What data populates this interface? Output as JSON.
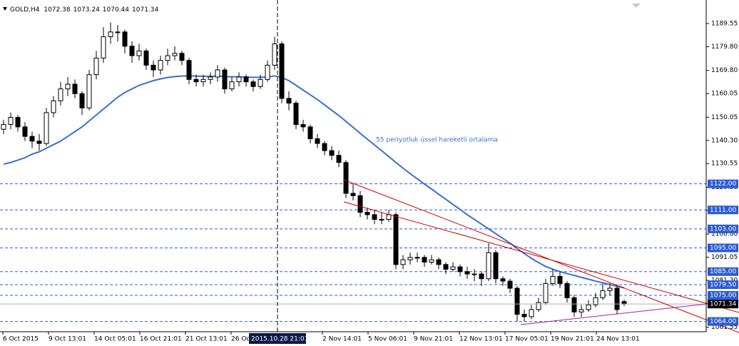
{
  "chart_data": {
    "type": "candlestick",
    "symbol": "GOLD,H4",
    "annotation": "55 periyotluk üssel hareketli ortalama",
    "up_color": "#ffffff",
    "down_color": "#000000",
    "candles": [
      [
        1145,
        1149,
        1143,
        1147
      ],
      [
        1147,
        1152,
        1145,
        1150
      ],
      [
        1150,
        1151,
        1144,
        1146
      ],
      [
        1146,
        1148,
        1140,
        1142
      ],
      [
        1142,
        1144,
        1137,
        1140
      ],
      [
        1140,
        1143,
        1136,
        1139
      ],
      [
        1139,
        1154,
        1138,
        1152
      ],
      [
        1152,
        1159,
        1150,
        1157
      ],
      [
        1157,
        1165,
        1155,
        1162
      ],
      [
        1162,
        1167,
        1159,
        1164
      ],
      [
        1164,
        1166,
        1158,
        1160
      ],
      [
        1160,
        1161,
        1151,
        1154
      ],
      [
        1154,
        1170,
        1153,
        1168
      ],
      [
        1168,
        1178,
        1166,
        1175
      ],
      [
        1175,
        1188,
        1173,
        1184
      ],
      [
        1184,
        1190,
        1181,
        1186
      ],
      [
        1186,
        1189,
        1182,
        1186
      ],
      [
        1186,
        1187,
        1177,
        1180
      ],
      [
        1180,
        1182,
        1173,
        1176
      ],
      [
        1176,
        1181,
        1174,
        1178
      ],
      [
        1178,
        1179,
        1170,
        1172
      ],
      [
        1172,
        1174,
        1167,
        1170
      ],
      [
        1170,
        1176,
        1168,
        1174
      ],
      [
        1174,
        1179,
        1172,
        1176
      ],
      [
        1176,
        1180,
        1174,
        1177
      ],
      [
        1177,
        1178,
        1172,
        1174
      ],
      [
        1174,
        1175,
        1164,
        1166
      ],
      [
        1166,
        1168,
        1163,
        1165
      ],
      [
        1165,
        1168,
        1163,
        1166
      ],
      [
        1166,
        1169,
        1164,
        1167
      ],
      [
        1167,
        1172,
        1165,
        1170
      ],
      [
        1170,
        1171,
        1160,
        1162
      ],
      [
        1162,
        1167,
        1161,
        1165
      ],
      [
        1165,
        1169,
        1163,
        1167
      ],
      [
        1167,
        1168,
        1163,
        1165
      ],
      [
        1165,
        1166,
        1161,
        1163
      ],
      [
        1163,
        1168,
        1162,
        1166
      ],
      [
        1166,
        1174,
        1165,
        1172
      ],
      [
        1172,
        1184,
        1170,
        1181
      ],
      [
        1181,
        1182,
        1156,
        1158
      ],
      [
        1158,
        1161,
        1153,
        1156
      ],
      [
        1156,
        1157,
        1145,
        1147
      ],
      [
        1147,
        1149,
        1144,
        1146
      ],
      [
        1146,
        1147,
        1139,
        1141
      ],
      [
        1141,
        1143,
        1137,
        1139
      ],
      [
        1139,
        1140,
        1134,
        1136
      ],
      [
        1136,
        1138,
        1132,
        1134
      ],
      [
        1134,
        1136,
        1129,
        1131
      ],
      [
        1131,
        1132,
        1116,
        1118
      ],
      [
        1118,
        1122,
        1115,
        1117
      ],
      [
        1117,
        1119,
        1108,
        1110
      ],
      [
        1110,
        1112,
        1107,
        1109
      ],
      [
        1109,
        1111,
        1105,
        1107
      ],
      [
        1107,
        1110,
        1105,
        1107
      ],
      [
        1107,
        1111,
        1106,
        1109
      ],
      [
        1109,
        1110,
        1086,
        1088
      ],
      [
        1088,
        1092,
        1086,
        1090
      ],
      [
        1090,
        1093,
        1088,
        1091
      ],
      [
        1091,
        1093,
        1089,
        1091
      ],
      [
        1091,
        1092,
        1087,
        1089
      ],
      [
        1089,
        1092,
        1088,
        1090
      ],
      [
        1090,
        1091,
        1086,
        1088
      ],
      [
        1088,
        1089,
        1084,
        1086
      ],
      [
        1086,
        1089,
        1085,
        1087
      ],
      [
        1087,
        1088,
        1083,
        1085
      ],
      [
        1085,
        1087,
        1082,
        1084
      ],
      [
        1084,
        1086,
        1081,
        1084
      ],
      [
        1084,
        1085,
        1079,
        1082
      ],
      [
        1082,
        1097,
        1081,
        1093
      ],
      [
        1093,
        1094,
        1080,
        1082
      ],
      [
        1082,
        1083,
        1079,
        1081
      ],
      [
        1081,
        1082,
        1076,
        1078
      ],
      [
        1078,
        1079,
        1064,
        1067
      ],
      [
        1067,
        1069,
        1064,
        1066
      ],
      [
        1066,
        1071,
        1065,
        1069
      ],
      [
        1069,
        1074,
        1068,
        1072
      ],
      [
        1072,
        1082,
        1071,
        1080
      ],
      [
        1080,
        1086,
        1079,
        1083
      ],
      [
        1083,
        1085,
        1078,
        1080
      ],
      [
        1080,
        1081,
        1072,
        1074
      ],
      [
        1074,
        1075,
        1066,
        1068
      ],
      [
        1068,
        1071,
        1066,
        1069
      ],
      [
        1069,
        1073,
        1068,
        1071
      ],
      [
        1071,
        1076,
        1070,
        1074
      ],
      [
        1074,
        1080,
        1073,
        1077
      ],
      [
        1077,
        1080,
        1075,
        1078
      ],
      [
        1078,
        1079,
        1067,
        1069
      ],
      [
        1072.38,
        1073.24,
        1070.44,
        1071.34
      ]
    ],
    "ema": {
      "color": "#3a6fd0",
      "values": [
        1130.3,
        1131,
        1132,
        1133,
        1134.5,
        1135.5,
        1137,
        1138.5,
        1140,
        1142,
        1144,
        1146,
        1148.5,
        1151,
        1153.5,
        1156,
        1158.5,
        1160.5,
        1162,
        1163.5,
        1164.5,
        1165.5,
        1166.2,
        1166.8,
        1167.2,
        1167.4,
        1167.5,
        1167.4,
        1167.3,
        1167.3,
        1167.4,
        1167.2,
        1167.1,
        1167.1,
        1167,
        1166.9,
        1166.9,
        1167,
        1167.5,
        1166.8,
        1165.5,
        1163.5,
        1161.5,
        1159.5,
        1157.5,
        1155.3,
        1153,
        1150.8,
        1148.3,
        1145.8,
        1143.3,
        1140.8,
        1138.4,
        1136,
        1133.5,
        1131,
        1128.6,
        1126.3,
        1124.1,
        1121.9,
        1119.8,
        1117.6,
        1115.5,
        1113.3,
        1111.2,
        1109,
        1107,
        1105,
        1103,
        1101,
        1099,
        1097,
        1094.8,
        1092.6,
        1090.6,
        1088.8,
        1087.2,
        1086,
        1085,
        1084.2,
        1083.4,
        1082.6,
        1081.8,
        1081,
        1080.3,
        1079.6,
        1078.8,
        1078.2
      ]
    },
    "ylim": [
      1059.67,
      1199.47
    ],
    "yticks": [
      1189.55,
      {
        "value": 1179.8,
        "label": "1179.80"
      },
      {
        "value": 1169.8,
        "label": "1169.80"
      },
      1160.05,
      1150.05,
      {
        "value": 1140.3,
        "label": "1140.30"
      },
      1130.55,
      1120.55,
      {
        "value": 1110.8,
        "label": "1110.80"
      },
      {
        "value": 1100.8,
        "label": "1100.80"
      },
      1091.05,
      {
        "value": 1081.3,
        "label": "1081.30"
      },
      1061.55
    ],
    "level_color": "#2a5bd7",
    "levels": [
      {
        "value": 1122,
        "label": "1122.00"
      },
      {
        "value": 1111,
        "label": "1111.00"
      },
      {
        "value": 1103,
        "label": "1103.00"
      },
      {
        "value": 1095,
        "label": "1095.00"
      },
      {
        "value": 1085,
        "label": "1085.00"
      },
      {
        "value": 1079.5,
        "label": "1079.50"
      },
      {
        "value": 1075,
        "label": "1075.00"
      },
      {
        "value": 1064,
        "label": "1064.00"
      }
    ],
    "xlabels": [
      "6 Oct 2015",
      "9 Oct 13:01",
      "14 Oct 05:01",
      "16 Oct 21:01",
      "21 Oct 13:01",
      "26 Oc",
      null,
      "2 Nov 14:01",
      "5 Nov 06:01",
      "9 Nov 21:01",
      "12 Nov 13:01",
      "17 Nov 05:01",
      "19 Nov 21:01",
      "24 Nov 13:01"
    ],
    "cursor_label": "2015.10.28 21:01"
  }
}
